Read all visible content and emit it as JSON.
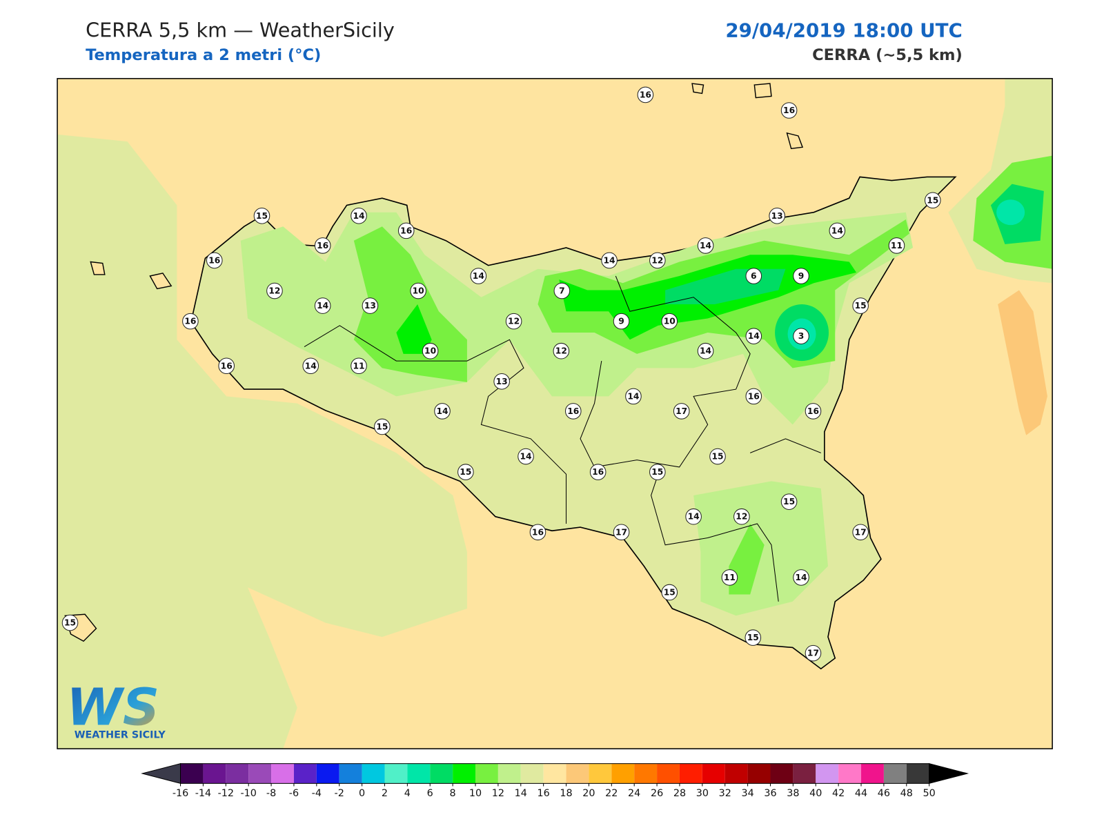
{
  "header": {
    "title": "CERRA 5,5 km — WeatherSicily",
    "subtitle": "Temperatura a 2 metri (°C)",
    "datetime": "29/04/2019 18:00 UTC",
    "model": "CERRA (~5,5 km)"
  },
  "stations": [
    16,
    16,
    15,
    14,
    16,
    16,
    16,
    15,
    13,
    14,
    11,
    14,
    12,
    14,
    14,
    6,
    9,
    12,
    10,
    7,
    14,
    13,
    15,
    16,
    12,
    9,
    10,
    3,
    14,
    10,
    12,
    14,
    16,
    14,
    11,
    13,
    16,
    14,
    16,
    14,
    16,
    17,
    15,
    15,
    14,
    15,
    16,
    15,
    15,
    14,
    12,
    17,
    16,
    17,
    11,
    14,
    15,
    15,
    15,
    17
  ],
  "colorbar": {
    "ticks": [
      -16,
      -14,
      -12,
      -10,
      -8,
      -6,
      -4,
      -2,
      0,
      2,
      4,
      6,
      8,
      10,
      12,
      14,
      16,
      18,
      20,
      22,
      24,
      26,
      28,
      30,
      32,
      34,
      36,
      38,
      40,
      42,
      44,
      46,
      48,
      50
    ],
    "colors": [
      "#3b0050",
      "#6a1590",
      "#7b2ea0",
      "#9a4ab8",
      "#d86fe8",
      "#5a22c8",
      "#0a1af0",
      "#1480dc",
      "#00c8e0",
      "#50f0c8",
      "#00e6a8",
      "#00dc64",
      "#00f000",
      "#78f040",
      "#c0f08c",
      "#e0eaa0",
      "#ffe6a0",
      "#fcc878",
      "#ffc83c",
      "#ffa000",
      "#ff7800",
      "#ff5000",
      "#ff1e00",
      "#e60000",
      "#c00000",
      "#960000",
      "#6e0014",
      "#7a2040",
      "#d296f0",
      "#ff78c8",
      "#f0148c",
      "#808080",
      "#383838"
    ],
    "under_color": "#3a3a4a",
    "over_color": "#000000"
  },
  "logo": {
    "mark": "WS",
    "name": "WEATHER SICILY"
  }
}
